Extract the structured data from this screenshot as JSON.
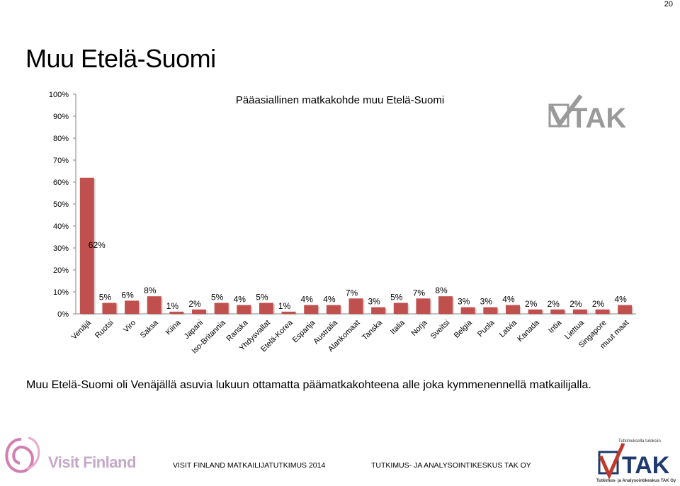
{
  "page": {
    "number": "20",
    "title": "Muu Etelä-Suomi",
    "caption": "Muu Etelä-Suomi oli Venäjällä asuvia lukuun ottamatta päämatkakohteena alle joka kymmenennellä matkailijalla.",
    "footer_left": "VISIT FINLAND MATKAILIJATUTKIMUS 2014",
    "footer_right": "TUTKIMUS- JA ANALYSOINTIKESKUS TAK OY",
    "logo_left_text": "Visit Finland",
    "logo_right_text": "TAK",
    "logo_right_small": "Tutkimuksella tuloksiin",
    "logo_right_sub": "Tutkimus- ja Analysointikeskus TAK Oy"
  },
  "colors": {
    "bar": "#c0504d",
    "axis": "#868686",
    "logo_gray": "#8c8c8c",
    "visit_finland": "#d17fb0",
    "tak_blue": "#1f3a6e"
  },
  "chart_data": {
    "type": "bar",
    "title": "Pääasiallinen matkakohde muu Etelä-Suomi",
    "categories": [
      "Venäjä",
      "Ruotsi",
      "Viro",
      "Saksa",
      "Kiina",
      "Japani",
      "Iso-Britannia",
      "Ranska",
      "Yhdysvallat",
      "Etelä-Korea",
      "Espanja",
      "Australia",
      "Alankomaat",
      "Tanska",
      "Italia",
      "Norja",
      "Sveitsi",
      "Belgia",
      "Puola",
      "Latvia",
      "Kanada",
      "Intia",
      "Liettua",
      "Singapore",
      "muut maat"
    ],
    "values": [
      62,
      5,
      6,
      8,
      1,
      2,
      5,
      4,
      5,
      1,
      4,
      4,
      7,
      3,
      5,
      7,
      8,
      3,
      3,
      4,
      2,
      2,
      2,
      2,
      4
    ],
    "data_labels": [
      "62%",
      "5%",
      "6%",
      "8%",
      "1%",
      "2%",
      "5%",
      "4%",
      "5%",
      "1%",
      "4%",
      "4%",
      "7%",
      "3%",
      "5%",
      "7%",
      "8%",
      "3%",
      "3%",
      "4%",
      "2%",
      "2%",
      "2%",
      "2%",
      "4%"
    ],
    "ytick_labels": [
      "0%",
      "10%",
      "20%",
      "30%",
      "40%",
      "50%",
      "60%",
      "70%",
      "80%",
      "90%",
      "100%"
    ],
    "ylim": [
      0,
      100
    ],
    "xlabel": "",
    "ylabel": "",
    "grid": false,
    "legend": "none"
  }
}
